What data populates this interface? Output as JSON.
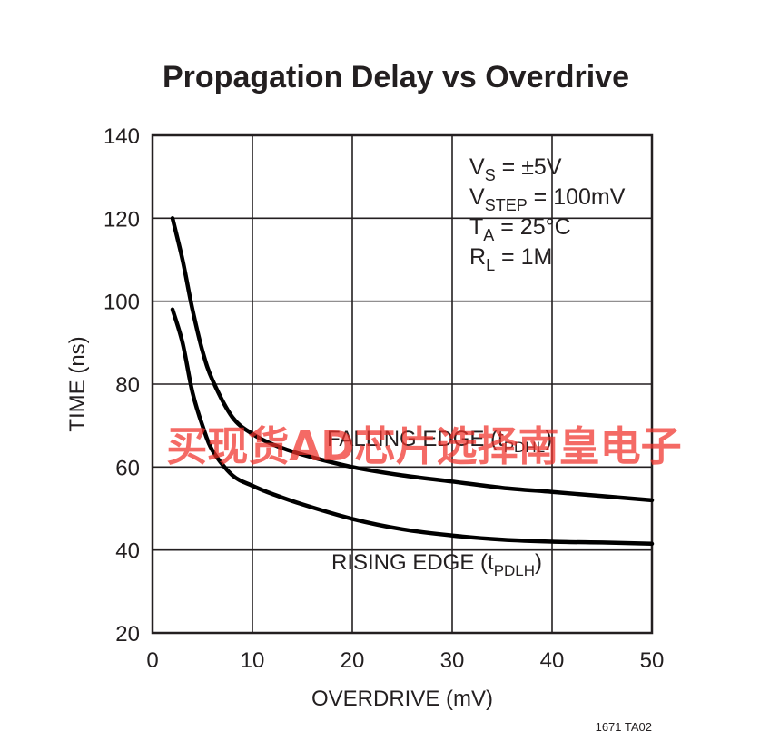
{
  "chart_data": {
    "type": "line",
    "title": "Propagation Delay vs Overdrive",
    "xlabel": "OVERDRIVE (mV)",
    "ylabel": "TIME (ns)",
    "xlim": [
      0,
      50
    ],
    "ylim": [
      20,
      140
    ],
    "xticks": [
      0,
      10,
      20,
      30,
      40,
      50
    ],
    "yticks": [
      20,
      40,
      60,
      80,
      100,
      120,
      140
    ],
    "grid": true,
    "conditions": [
      {
        "main": "V",
        "sub": "S",
        "rest": " = ±5V"
      },
      {
        "main": "V",
        "sub": "STEP",
        "rest": " = 100mV"
      },
      {
        "main": "T",
        "sub": "A",
        "rest": " = 25°C"
      },
      {
        "main": "R",
        "sub": "L",
        "rest": " = 1M"
      }
    ],
    "series": [
      {
        "name": "FALLING EDGE",
        "label_main": "FALLING EDGE (t",
        "label_sub": "PDHL",
        "label_end": ")",
        "x": [
          2,
          3,
          4,
          5,
          6,
          8,
          10,
          12,
          15,
          20,
          25,
          30,
          35,
          40,
          45,
          50
        ],
        "y": [
          120,
          110,
          98,
          88,
          81,
          72,
          68,
          65.5,
          63,
          60,
          58,
          56.5,
          55,
          54,
          53,
          52
        ]
      },
      {
        "name": "RISING EDGE",
        "label_main": "RISING EDGE (t",
        "label_sub": "PDLH",
        "label_end": ")",
        "x": [
          2,
          3,
          4,
          5,
          6,
          8,
          10,
          12,
          15,
          20,
          25,
          30,
          35,
          40,
          45,
          50
        ],
        "y": [
          98,
          90,
          78,
          70,
          64,
          58,
          55.5,
          53.5,
          51,
          47.5,
          45,
          43.5,
          42.5,
          42,
          41.8,
          41.5
        ]
      }
    ]
  },
  "figure_code": "1671 TA02",
  "watermark": "买现货AD芯片选择南皇电子"
}
